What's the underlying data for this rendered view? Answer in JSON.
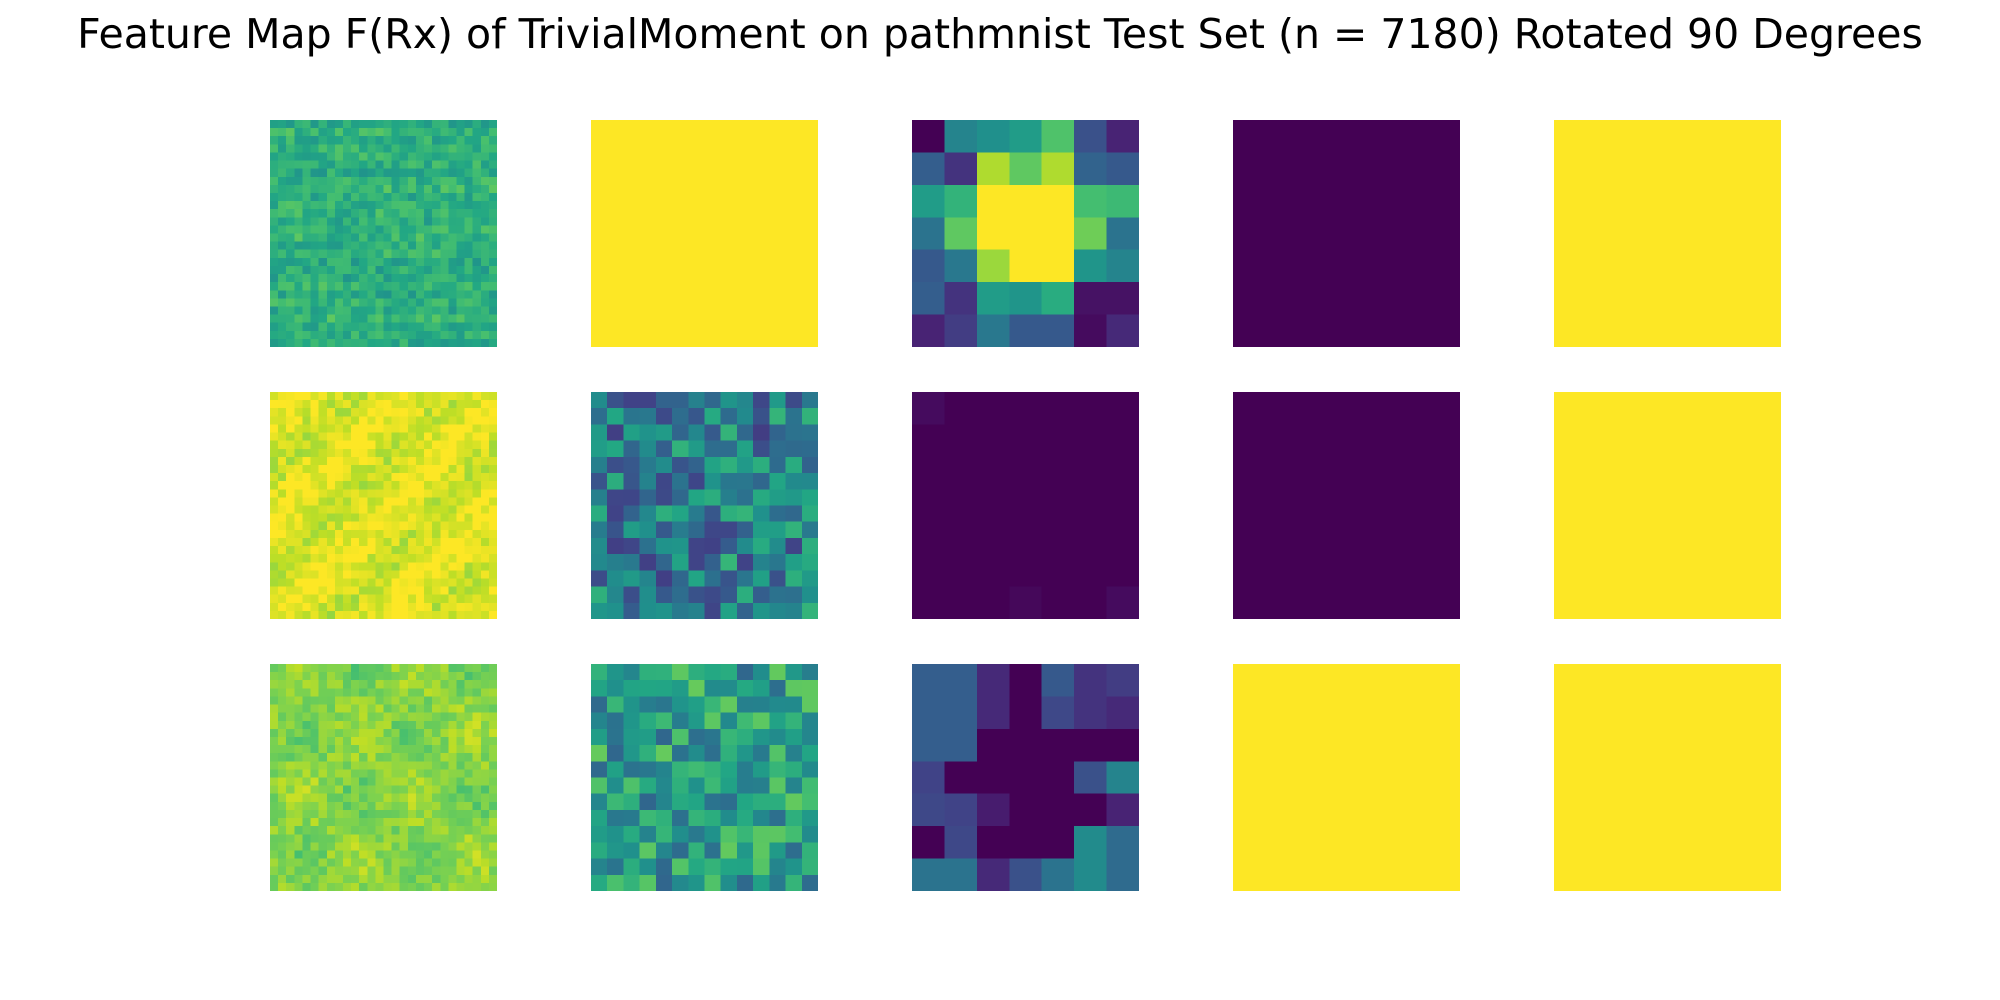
{
  "figure": {
    "title": "Feature Map F(Rx) of TrivialMoment on pathmnist Test Set (n = 7180) Rotated 90 Degrees"
  },
  "colormap": "viridis",
  "colors": {
    "viridis_low": "#440154",
    "viridis_mid": "#21918c",
    "viridis_high": "#fde725"
  },
  "chart_data": {
    "type": "heatmap",
    "grid": {
      "rows": 3,
      "cols": 5
    },
    "title": "Feature Map F(Rx) of TrivialMoment on pathmnist Test Set (n = 7180) Rotated 90 Degrees",
    "axes": "off",
    "panels": [
      {
        "row": 0,
        "col": 0,
        "resolution": 28,
        "pattern": "noise",
        "mean": 0.63,
        "spread": 0.09,
        "streaks": "horizontal",
        "seed": 11
      },
      {
        "row": 0,
        "col": 1,
        "resolution": 1,
        "pattern": "uniform",
        "value": 1.0
      },
      {
        "row": 0,
        "col": 2,
        "resolution": 7,
        "pattern": "matrix",
        "values": [
          [
            0.0,
            0.45,
            0.5,
            0.55,
            0.72,
            0.25,
            0.1
          ],
          [
            0.3,
            0.15,
            0.88,
            0.75,
            0.88,
            0.32,
            0.28
          ],
          [
            0.55,
            0.65,
            1.0,
            1.0,
            1.0,
            0.7,
            0.68
          ],
          [
            0.38,
            0.75,
            1.0,
            1.0,
            1.0,
            0.78,
            0.38
          ],
          [
            0.28,
            0.4,
            0.85,
            1.0,
            1.0,
            0.52,
            0.45
          ],
          [
            0.3,
            0.15,
            0.55,
            0.52,
            0.62,
            0.05,
            0.05
          ],
          [
            0.1,
            0.18,
            0.4,
            0.28,
            0.28,
            0.03,
            0.12
          ]
        ]
      },
      {
        "row": 0,
        "col": 3,
        "resolution": 1,
        "pattern": "uniform",
        "value": 0.0
      },
      {
        "row": 0,
        "col": 4,
        "resolution": 1,
        "pattern": "uniform",
        "value": 1.0
      },
      {
        "row": 1,
        "col": 0,
        "resolution": 28,
        "pattern": "noise",
        "mean": 0.95,
        "spread": 0.07,
        "streaks": "diagonal",
        "seed": 23
      },
      {
        "row": 1,
        "col": 1,
        "resolution": 14,
        "pattern": "noise",
        "mean": 0.42,
        "spread": 0.24,
        "streaks": "none",
        "seed": 37
      },
      {
        "row": 1,
        "col": 2,
        "resolution": 7,
        "pattern": "matrix",
        "values": [
          [
            0.03,
            0.0,
            0.0,
            0.0,
            0.0,
            0.0,
            0.0
          ],
          [
            0.0,
            0.0,
            0.0,
            0.0,
            0.0,
            0.0,
            0.0
          ],
          [
            0.0,
            0.0,
            0.0,
            0.0,
            0.0,
            0.0,
            0.0
          ],
          [
            0.0,
            0.0,
            0.0,
            0.0,
            0.0,
            0.0,
            0.0
          ],
          [
            0.0,
            0.0,
            0.0,
            0.0,
            0.0,
            0.0,
            0.0
          ],
          [
            0.0,
            0.0,
            0.0,
            0.0,
            0.0,
            0.0,
            0.0
          ],
          [
            0.0,
            0.0,
            0.0,
            0.02,
            0.0,
            0.0,
            0.03
          ]
        ]
      },
      {
        "row": 1,
        "col": 3,
        "resolution": 1,
        "pattern": "uniform",
        "value": 0.0
      },
      {
        "row": 1,
        "col": 4,
        "resolution": 1,
        "pattern": "uniform",
        "value": 1.0
      },
      {
        "row": 2,
        "col": 0,
        "resolution": 28,
        "pattern": "noise",
        "mean": 0.82,
        "spread": 0.07,
        "streaks": "blobs",
        "seed": 53
      },
      {
        "row": 2,
        "col": 1,
        "resolution": 14,
        "pattern": "noise",
        "mean": 0.55,
        "spread": 0.22,
        "streaks": "none",
        "seed": 71
      },
      {
        "row": 2,
        "col": 2,
        "resolution": 7,
        "pattern": "matrix",
        "values": [
          [
            0.3,
            0.3,
            0.12,
            0.0,
            0.28,
            0.15,
            0.18
          ],
          [
            0.3,
            0.3,
            0.12,
            0.0,
            0.22,
            0.15,
            0.12
          ],
          [
            0.3,
            0.3,
            0.0,
            0.0,
            0.0,
            0.0,
            0.0
          ],
          [
            0.2,
            0.0,
            0.0,
            0.0,
            0.0,
            0.25,
            0.45
          ],
          [
            0.22,
            0.2,
            0.08,
            0.0,
            0.0,
            0.0,
            0.1
          ],
          [
            0.0,
            0.22,
            0.0,
            0.0,
            0.0,
            0.48,
            0.35
          ],
          [
            0.38,
            0.38,
            0.12,
            0.25,
            0.38,
            0.48,
            0.35
          ]
        ]
      },
      {
        "row": 2,
        "col": 3,
        "resolution": 1,
        "pattern": "uniform",
        "value": 1.0
      },
      {
        "row": 2,
        "col": 4,
        "resolution": 1,
        "pattern": "uniform",
        "value": 1.0
      }
    ]
  }
}
